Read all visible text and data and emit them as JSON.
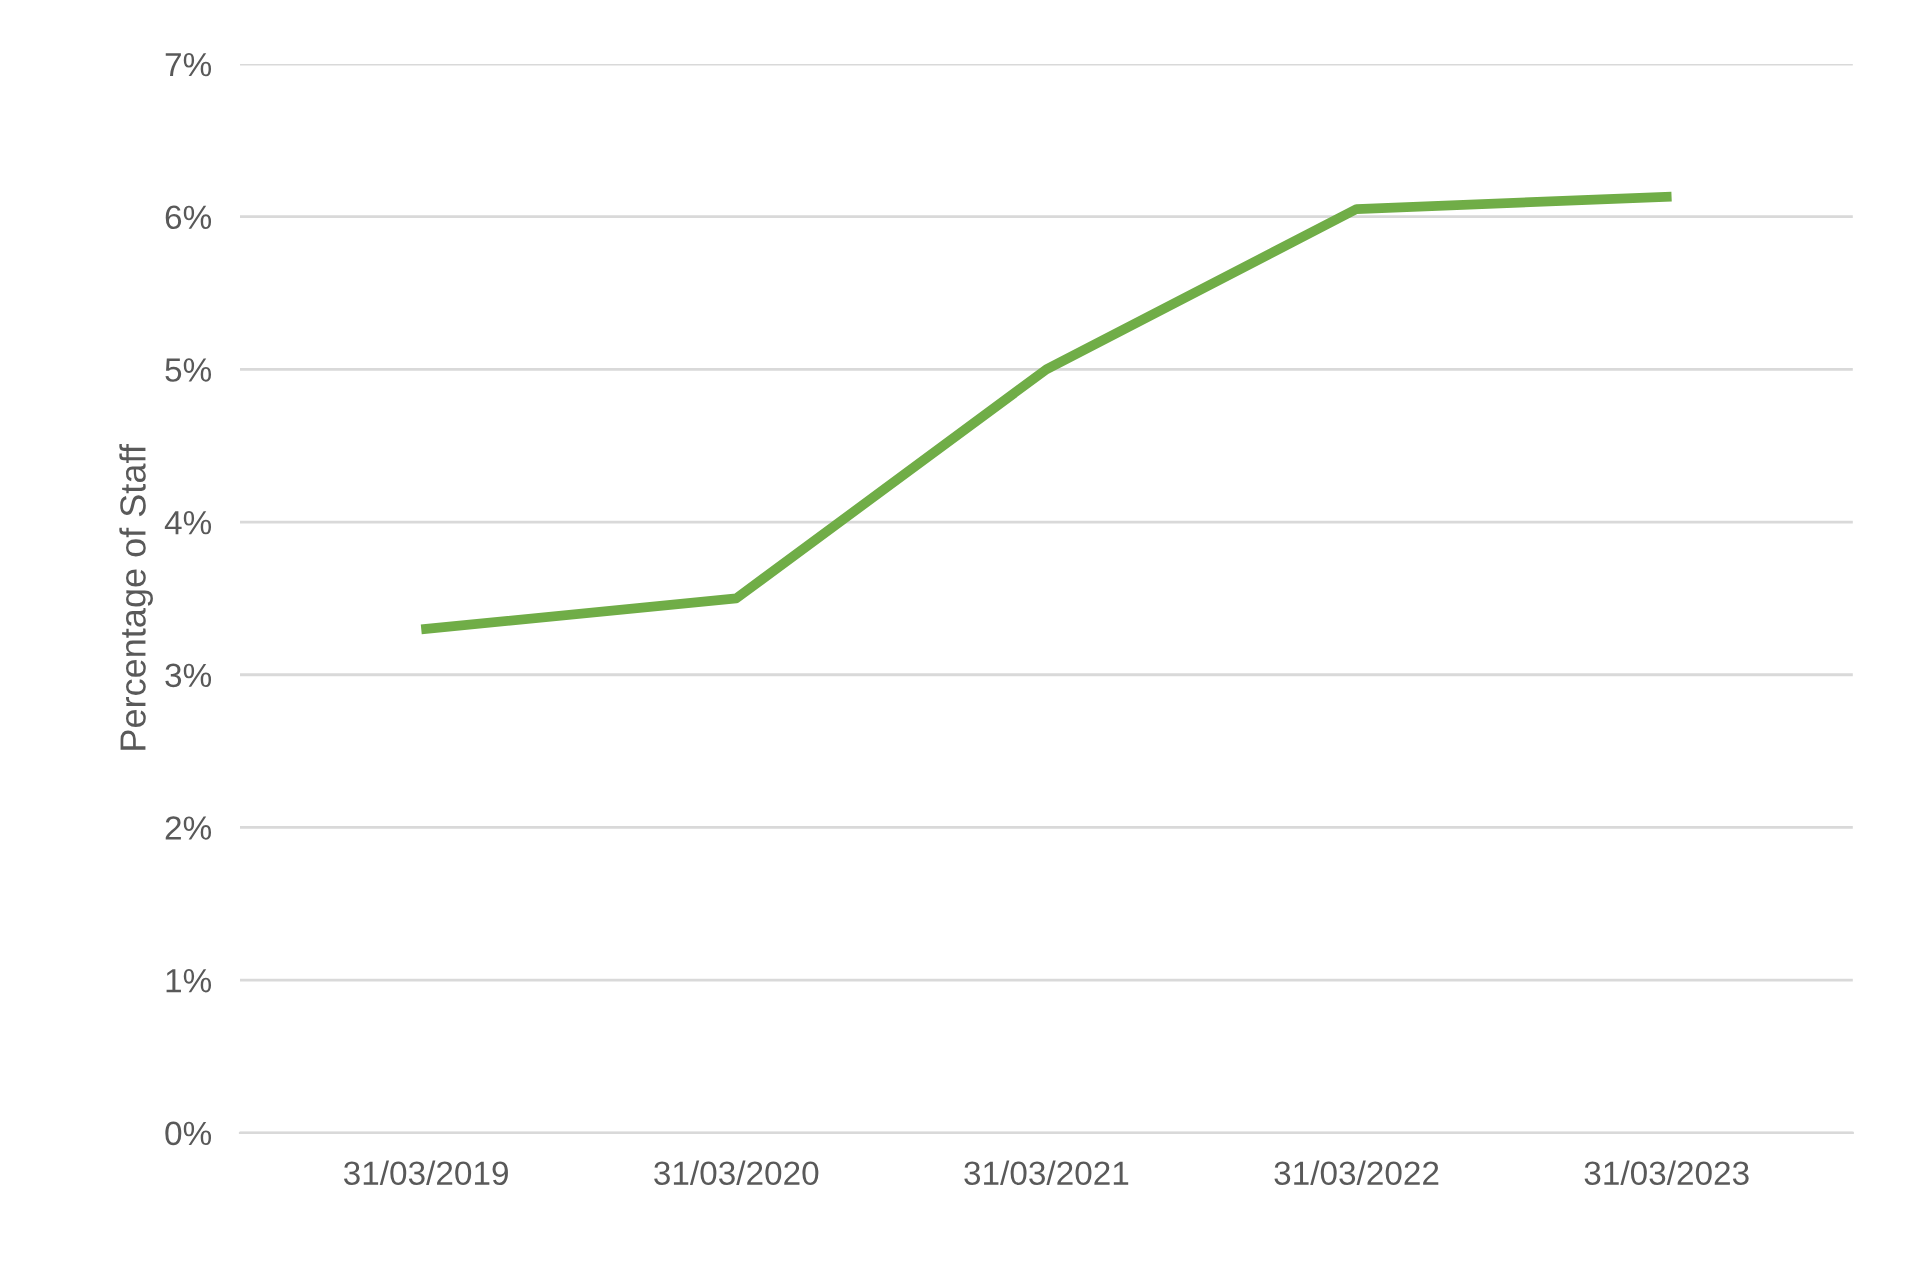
{
  "chart_data": {
    "type": "line",
    "ylabel": "Percentage of Staff",
    "categories": [
      "31/03/2019",
      "31/03/2020",
      "31/03/2021",
      "31/03/2022",
      "31/03/2023"
    ],
    "series": [
      {
        "color": "#70ad47",
        "values": [
          3.3,
          3.5,
          5.0,
          6.05,
          6.13
        ]
      }
    ],
    "ylim": [
      0,
      7
    ],
    "yticks": [
      {
        "value": 0,
        "label": "0%"
      },
      {
        "value": 1,
        "label": "1%"
      },
      {
        "value": 2,
        "label": "2%"
      },
      {
        "value": 3,
        "label": "3%"
      },
      {
        "value": 4,
        "label": "4%"
      },
      {
        "value": 5,
        "label": "5%"
      },
      {
        "value": 6,
        "label": "6%"
      },
      {
        "value": 7,
        "label": "7%"
      }
    ],
    "grid": "y",
    "marker": "none",
    "line_style": "solid",
    "legend": false
  }
}
